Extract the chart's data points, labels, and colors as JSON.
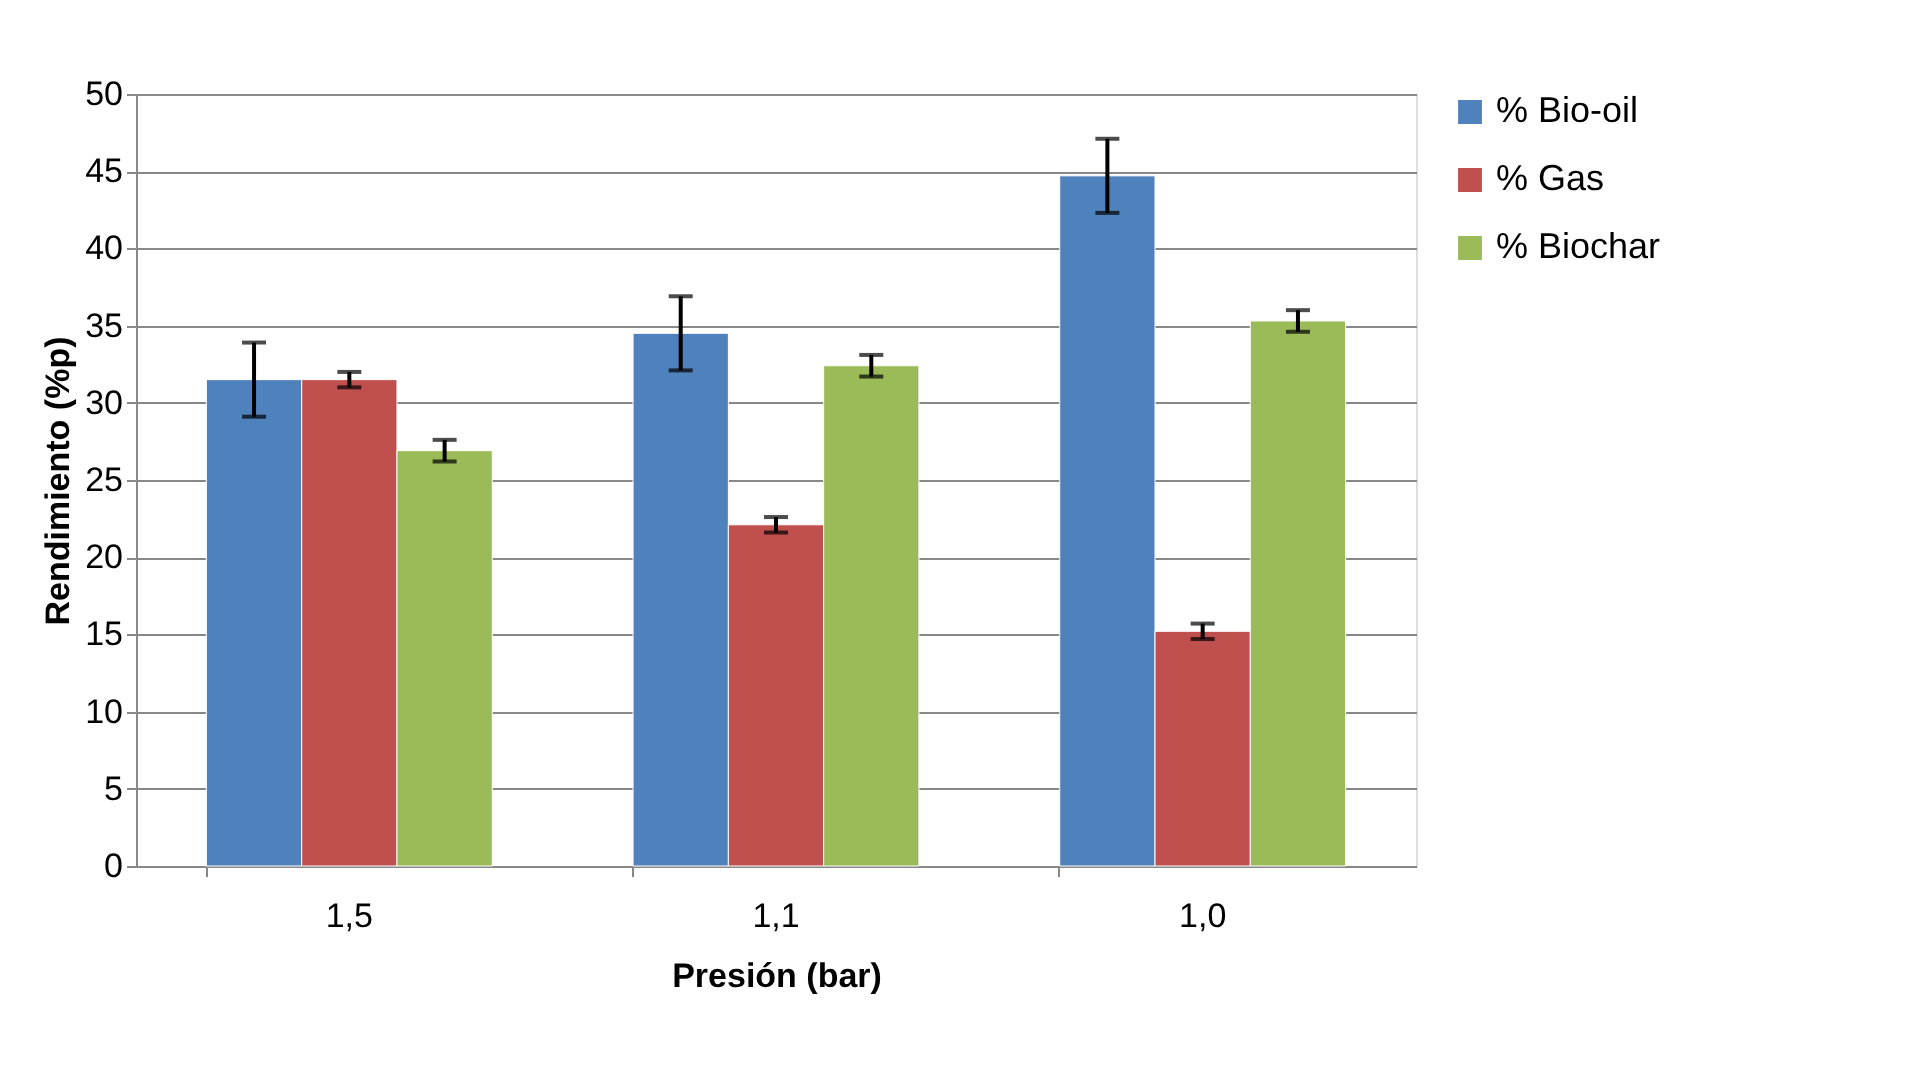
{
  "chart_data": {
    "type": "bar",
    "xlabel": "Presión (bar)",
    "ylabel": "Rendimiento (%p)",
    "categories": [
      "1,5",
      "1,1",
      "1,0"
    ],
    "series": [
      {
        "name": "% Bio-oil",
        "color": "#4f81bd",
        "values": [
          31.5,
          34.5,
          44.7
        ],
        "errors": [
          2.4,
          2.4,
          2.4
        ]
      },
      {
        "name": "% Gas",
        "color": "#c0504d",
        "values": [
          31.5,
          22.1,
          15.2
        ],
        "errors": [
          0.5,
          0.5,
          0.5
        ]
      },
      {
        "name": "% Biochar",
        "color": "#9bbb59",
        "values": [
          26.9,
          32.4,
          35.3
        ],
        "errors": [
          0.7,
          0.7,
          0.7
        ]
      }
    ],
    "ylim": [
      0,
      50
    ],
    "yticks": [
      0,
      5,
      10,
      15,
      20,
      25,
      30,
      35,
      40,
      45,
      50
    ],
    "grid": "y",
    "legend": "right"
  }
}
